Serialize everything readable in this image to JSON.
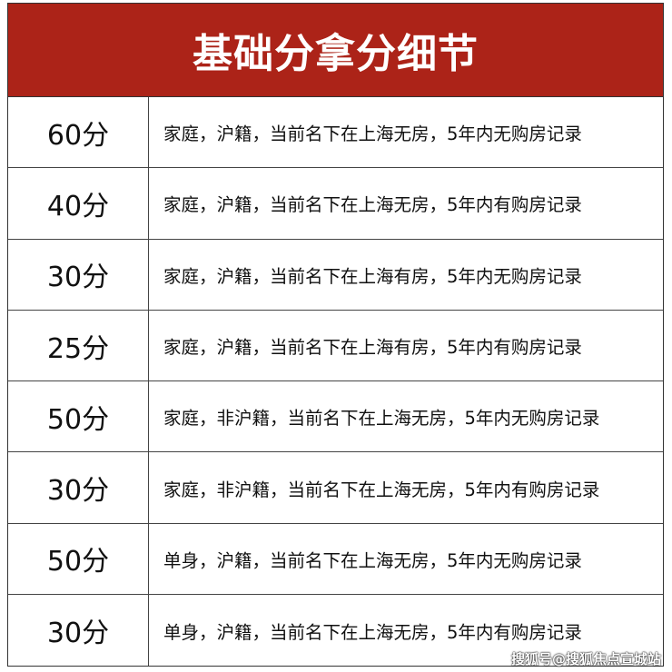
{
  "title": "基础分拿分细节",
  "rows": [
    {
      "score": "60分",
      "description": "家庭，沪籍，当前名下在上海无房，5年内无购房记录"
    },
    {
      "score": "40分",
      "description": "家庭，沪籍，当前名下在上海无房，5年内有购房记录"
    },
    {
      "score": "30分",
      "description": "家庭，沪籍，当前名下在上海有房，5年内无购房记录"
    },
    {
      "score": "25分",
      "description": "家庭，沪籍，当前名下在上海有房，5年内有购房记录"
    },
    {
      "score": "50分",
      "description": "家庭，非沪籍，当前名下在上海无房，5年内无购房记录"
    },
    {
      "score": "30分",
      "description": "家庭，非沪籍，当前名下在上海无房，5年内有购房记录"
    },
    {
      "score": "50分",
      "description": "单身，沪籍，当前名下在上海无房，5年内无购房记录"
    },
    {
      "score": "30分",
      "description": "单身，沪籍，当前名下在上海无房，5年内有购房记录"
    }
  ],
  "watermark": "搜狐号@搜狐焦点宣城站",
  "colors": {
    "header_bg": "#ac2318",
    "header_text": "#ffffff"
  }
}
